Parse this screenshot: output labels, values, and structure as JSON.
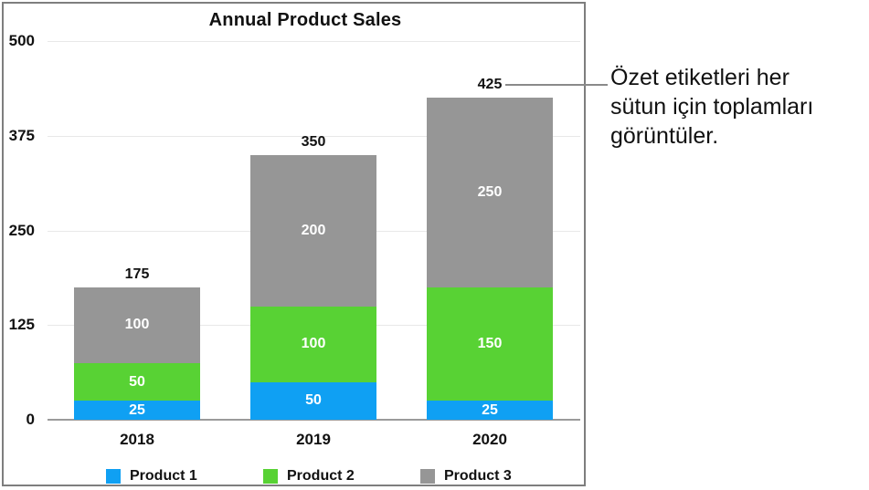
{
  "callout": {
    "lines": [
      "Özet etiketleri her",
      "sütun için toplamları",
      "görüntüler."
    ],
    "full_text": "Özet etiketleri her sütun için toplamları görüntüler."
  },
  "chart_data": {
    "type": "bar",
    "stacked": true,
    "title": "Annual Product Sales",
    "categories": [
      "2018",
      "2019",
      "2020"
    ],
    "series": [
      {
        "name": "Product 1",
        "color": "#0fa0f3",
        "values": [
          25,
          50,
          25
        ]
      },
      {
        "name": "Product 2",
        "color": "#58d234",
        "values": [
          50,
          100,
          150
        ]
      },
      {
        "name": "Product 3",
        "color": "#969696",
        "values": [
          100,
          200,
          250
        ]
      }
    ],
    "totals": [
      175,
      350,
      425
    ],
    "y_ticks": [
      0,
      125,
      250,
      375,
      500
    ],
    "ylim": [
      0,
      500
    ],
    "grid": true,
    "legend_position": "bottom",
    "summary_label_color": "#111111",
    "segment_label_color": "#ffffff"
  },
  "colors": {
    "panel_border": "#7e7e7e",
    "panel_bg": "#ffffff",
    "gridline": "#e8e8e8",
    "axis": "#9b9b9b",
    "callout_line": "#8a8a8a",
    "text": "#111111"
  }
}
